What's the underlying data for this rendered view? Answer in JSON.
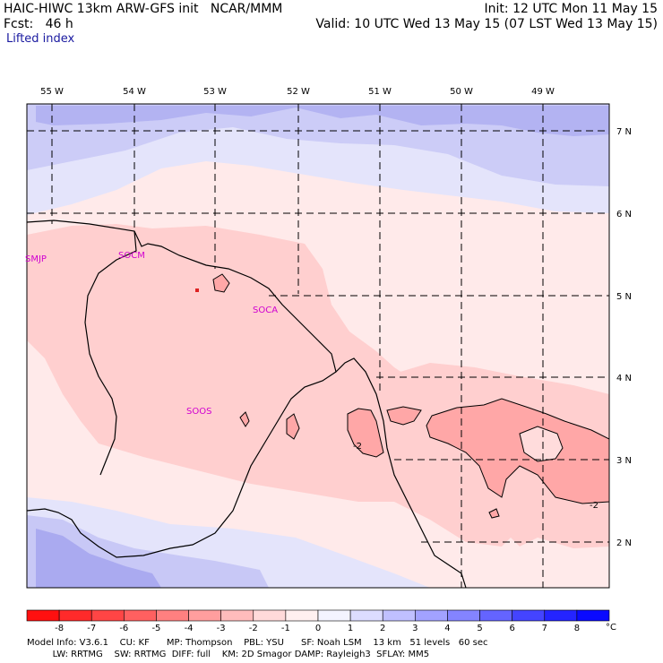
{
  "header": {
    "title": "HAIC-HIWC 13km ARW-GFS init   NCAR/MMM",
    "init": "Init: 12 UTC Mon 11 May 15",
    "fcst": "Fcst:   46 h",
    "valid": "Valid: 10 UTC Wed 13 May 15 (07 LST Wed 13 May 15)",
    "field": "Lifted index"
  },
  "map": {
    "lon_labels": [
      "55 W",
      "54 W",
      "53 W",
      "52 W",
      "51 W",
      "50 W",
      "49 W"
    ],
    "lat_labels": [
      "7 N",
      "6 N",
      "5 N",
      "4 N",
      "3 N",
      "2 N"
    ],
    "stations": [
      "SMJP",
      "SOCM",
      "SOCA",
      "SOOS"
    ],
    "contour_labels": [
      "-2",
      "-2"
    ]
  },
  "colorbar": {
    "labels": [
      "-8",
      "-7",
      "-6",
      "-5",
      "-4",
      "-3",
      "-2",
      "-1",
      "0",
      "1",
      "2",
      "3",
      "4",
      "5",
      "6",
      "7",
      "8"
    ],
    "unit": "°C",
    "colors": [
      "#ff1010",
      "#ff2a2a",
      "#ff4545",
      "#ff6060",
      "#ff8080",
      "#ff9e9e",
      "#ffbcbc",
      "#ffdada",
      "#fff0f0",
      "#f4f4ff",
      "#dcdcff",
      "#c0c0ff",
      "#a2a2ff",
      "#8484ff",
      "#6464ff",
      "#4444ff",
      "#2424ff",
      "#0a0aff"
    ]
  },
  "footer": {
    "line1": "Model Info: V3.6.1    CU: KF      MP: Thompson    PBL: YSU      SF: Noah LSM    13 km   51 levels   60 sec",
    "line2": "         LW: RRTMG    SW: RRTMG  DIFF: full    KM: 2D Smagor DAMP: Rayleigh3  SFLAY: MM5"
  }
}
